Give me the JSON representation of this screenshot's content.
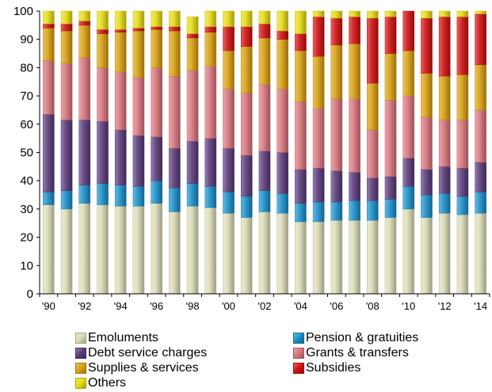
{
  "chart_data": {
    "type": "bar",
    "stacked": true,
    "categories": [
      "1990",
      "1991",
      "1992",
      "1993",
      "1994",
      "1995",
      "1996",
      "1997",
      "1998",
      "1999",
      "2000",
      "2001",
      "2002",
      "2003",
      "2004",
      "2005",
      "2006",
      "2007",
      "2008",
      "2009",
      "2010",
      "2011",
      "2012",
      "2013",
      "2014"
    ],
    "x_tick_labels": [
      "'90",
      "'92",
      "'94",
      "'96",
      "'98",
      "'00",
      "'02",
      "'04",
      "'06",
      "'08",
      "'10",
      "'12",
      "'14"
    ],
    "y_ticks": [
      0,
      10,
      20,
      30,
      40,
      50,
      60,
      70,
      80,
      90,
      100
    ],
    "ylim": [
      0,
      100
    ],
    "grid": false,
    "legend_position": "bottom",
    "series": [
      {
        "name": "Emoluments",
        "color": "#dcdcb8",
        "values": [
          31.5,
          30.0,
          32.0,
          31.5,
          31.0,
          31.0,
          32.0,
          29.0,
          31.0,
          30.5,
          28.5,
          27.0,
          29.0,
          28.5,
          25.5,
          25.5,
          26.0,
          26.0,
          26.0,
          27.0,
          30.0,
          27.0,
          28.5,
          28.0,
          28.5
        ]
      },
      {
        "name": "Pension & gratuities",
        "color": "#1a8fca",
        "values": [
          4.5,
          6.5,
          6.5,
          7.5,
          7.5,
          7.0,
          8.0,
          8.5,
          8.0,
          7.5,
          7.5,
          7.5,
          7.5,
          7.0,
          6.5,
          7.0,
          6.5,
          7.0,
          7.0,
          6.5,
          8.0,
          8.0,
          7.0,
          6.5,
          7.5
        ]
      },
      {
        "name": "Debt service charges",
        "color": "#5a3a7a",
        "values": [
          27.5,
          25.0,
          23.0,
          22.0,
          19.5,
          18.0,
          15.5,
          14.0,
          15.0,
          17.0,
          15.5,
          14.5,
          14.0,
          14.5,
          12.0,
          12.0,
          11.0,
          10.0,
          8.0,
          8.0,
          10.0,
          9.0,
          9.5,
          10.0,
          10.5
        ]
      },
      {
        "name": "Grants & transfers",
        "color": "#d9757d",
        "values": [
          19.0,
          20.0,
          22.0,
          19.0,
          20.5,
          20.5,
          24.5,
          25.5,
          25.0,
          25.5,
          21.0,
          22.0,
          23.5,
          22.5,
          24.0,
          21.0,
          25.5,
          26.0,
          17.0,
          27.0,
          22.0,
          18.5,
          16.5,
          17.0,
          18.5
        ]
      },
      {
        "name": "Supplies & services",
        "color": "#d9a010",
        "values": [
          11.5,
          11.5,
          11.5,
          12.0,
          14.0,
          16.5,
          13.5,
          16.0,
          11.5,
          12.0,
          13.5,
          16.5,
          16.5,
          17.5,
          18.0,
          18.5,
          19.0,
          19.5,
          16.5,
          16.5,
          16.0,
          15.5,
          15.5,
          16.0,
          16.0
        ]
      },
      {
        "name": "Subsidies",
        "color": "#d01010",
        "values": [
          1.5,
          2.5,
          1.5,
          1.5,
          1.0,
          1.0,
          1.0,
          1.5,
          1.5,
          2.0,
          8.5,
          7.0,
          5.0,
          3.0,
          6.0,
          14.0,
          9.5,
          9.5,
          23.0,
          13.0,
          14.0,
          19.5,
          21.0,
          20.5,
          18.0
        ]
      },
      {
        "name": "Others",
        "color": "#e8dc14",
        "values": [
          4.5,
          4.5,
          3.5,
          6.5,
          6.5,
          6.0,
          5.5,
          5.5,
          6.0,
          5.5,
          5.5,
          5.5,
          4.5,
          7.0,
          8.0,
          2.0,
          2.5,
          2.0,
          2.5,
          2.0,
          0.0,
          2.5,
          2.0,
          2.0,
          1.0
        ]
      }
    ]
  }
}
